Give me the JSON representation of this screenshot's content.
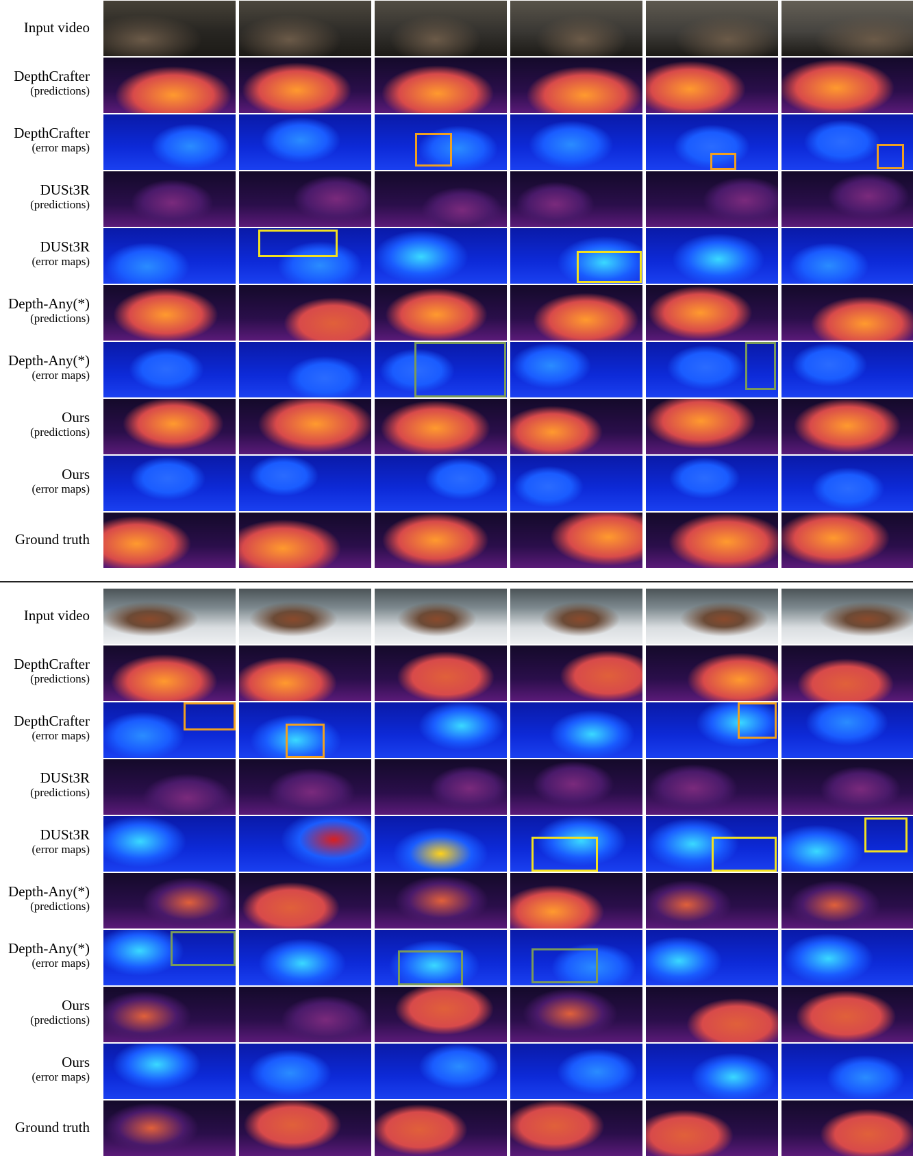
{
  "colors": {
    "highlight_depthcrafter": "#f0a020",
    "highlight_dust3r": "#f2e020",
    "highlight_depthany": "#7a9a5a"
  },
  "panels": [
    {
      "id": "top",
      "rows": [
        {
          "label": "Input video",
          "sublabel": "",
          "kind": "input",
          "scene": "dark-street"
        },
        {
          "label": "DepthCrafter",
          "sublabel": "(predictions)",
          "kind": "pred",
          "intensity": 0.95
        },
        {
          "label": "DepthCrafter",
          "sublabel": "(error maps)",
          "kind": "err",
          "intensity": 0.35
        },
        {
          "label": "DUSt3R",
          "sublabel": "(predictions)",
          "kind": "pred",
          "intensity": 0.35
        },
        {
          "label": "DUSt3R",
          "sublabel": "(error maps)",
          "kind": "err",
          "intensity": 0.5
        },
        {
          "label": "Depth-Any(*)",
          "sublabel": "(predictions)",
          "kind": "pred",
          "intensity": 0.8
        },
        {
          "label": "Depth-Any(*)",
          "sublabel": "(error maps)",
          "kind": "err",
          "intensity": 0.3
        },
        {
          "label": "Ours",
          "sublabel": "(predictions)",
          "kind": "pred",
          "intensity": 0.85
        },
        {
          "label": "Ours",
          "sublabel": "(error maps)",
          "kind": "err",
          "intensity": 0.2
        },
        {
          "label": "Ground truth",
          "sublabel": "",
          "kind": "pred",
          "intensity": 0.85
        }
      ]
    },
    {
      "id": "bottom",
      "rows": [
        {
          "label": "Input video",
          "sublabel": "",
          "kind": "input",
          "scene": "snow-rock"
        },
        {
          "label": "DepthCrafter",
          "sublabel": "(predictions)",
          "kind": "pred",
          "intensity": 0.7
        },
        {
          "label": "DepthCrafter",
          "sublabel": "(error maps)",
          "kind": "err",
          "intensity": 0.55
        },
        {
          "label": "DUSt3R",
          "sublabel": "(predictions)",
          "kind": "pred",
          "intensity": 0.4
        },
        {
          "label": "DUSt3R",
          "sublabel": "(error maps)",
          "kind": "err",
          "intensity": 0.75
        },
        {
          "label": "Depth-Any(*)",
          "sublabel": "(predictions)",
          "kind": "pred",
          "intensity": 0.6
        },
        {
          "label": "Depth-Any(*)",
          "sublabel": "(error maps)",
          "kind": "err",
          "intensity": 0.6
        },
        {
          "label": "Ours",
          "sublabel": "(predictions)",
          "kind": "pred",
          "intensity": 0.6
        },
        {
          "label": "Ours",
          "sublabel": "(error maps)",
          "kind": "err",
          "intensity": 0.4
        },
        {
          "label": "Ground truth",
          "sublabel": "",
          "kind": "pred",
          "intensity": 0.65
        }
      ]
    }
  ]
}
